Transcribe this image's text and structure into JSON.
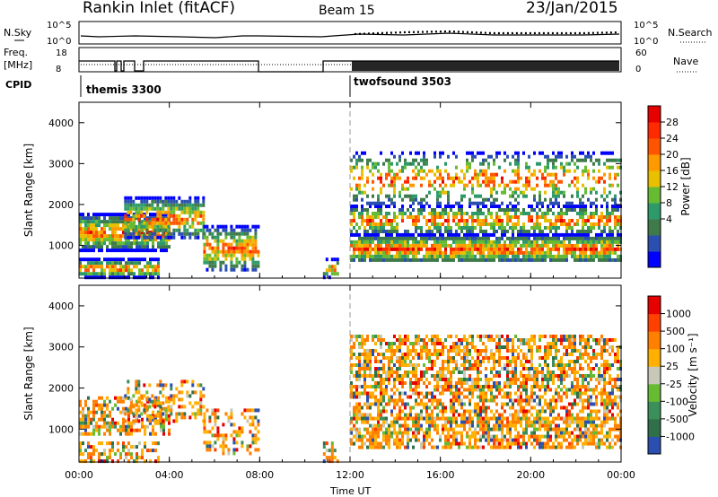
{
  "header": {
    "station": "Rankin Inlet (fitACF)",
    "beam": "Beam 15",
    "date": "23/Jan/2015"
  },
  "aux_panels": {
    "nsky_label": "N.Sky",
    "nsky_ticks": [
      "10^5",
      "10^0"
    ],
    "nsearch_label": "N.Search",
    "nsearch_ticks": [
      "10^5",
      "10^0"
    ],
    "freq_label": "Freq.",
    "freq_unit": "[MHz]",
    "freq_ticks": [
      "18",
      "8"
    ],
    "nave_label": "Nave",
    "nave_ticks": [
      "60",
      "0"
    ],
    "cpid_label": "CPID",
    "cpid_modes": [
      "themis 3300",
      "twofsound 3503"
    ]
  },
  "chart_data": [
    {
      "type": "heatmap",
      "panel": "power",
      "ylabel": "Slant Range [km]",
      "xlabel": "",
      "x_ticks": [
        "00:00",
        "04:00",
        "08:00",
        "12:00",
        "16:00",
        "20:00",
        "00:00"
      ],
      "xlim_hours": [
        0,
        24
      ],
      "ylim": [
        200,
        4500
      ],
      "y_ticks": [
        1000,
        2000,
        3000,
        4000
      ],
      "colorbar": {
        "label": "Power [dB]",
        "ticks": [
          "28",
          "24",
          "20",
          "16",
          "12",
          "8",
          "4"
        ],
        "colors": [
          "#0000ff",
          "#2a4fb0",
          "#3f7b4a",
          "#2e9a6a",
          "#66bb33",
          "#e8c000",
          "#ff9900",
          "#ff5500",
          "#ff2a00",
          "#e60000"
        ]
      },
      "data_gaps_hours": [
        [
          8.0,
          10.5
        ]
      ],
      "scatter_bands": [
        {
          "t0": 0.0,
          "t1": 4.0,
          "r0": 900,
          "r1": 1800,
          "level": 0.85
        },
        {
          "t0": 2.0,
          "t1": 5.5,
          "r0": 1200,
          "r1": 2200,
          "level": 0.75
        },
        {
          "t0": 0.0,
          "t1": 3.5,
          "r0": 250,
          "r1": 700,
          "level": 0.8
        },
        {
          "t0": 5.5,
          "t1": 8.0,
          "r0": 400,
          "r1": 1500,
          "level": 0.7
        },
        {
          "t0": 10.8,
          "t1": 11.5,
          "r0": 250,
          "r1": 700,
          "level": 0.55
        },
        {
          "t0": 12.0,
          "t1": 24.0,
          "r0": 600,
          "r1": 1300,
          "level": 0.9
        },
        {
          "t0": 12.0,
          "t1": 24.0,
          "r0": 1300,
          "r1": 2000,
          "level": 0.6
        },
        {
          "t0": 12.0,
          "t1": 24.0,
          "r0": 2000,
          "r1": 3300,
          "level": 0.35
        }
      ]
    },
    {
      "type": "heatmap",
      "panel": "velocity",
      "ylabel": "Slant Range [km]",
      "xlabel": "Time UT",
      "x_ticks": [
        "00:00",
        "04:00",
        "08:00",
        "12:00",
        "16:00",
        "20:00",
        "00:00"
      ],
      "xlim_hours": [
        0,
        24
      ],
      "ylim": [
        200,
        4500
      ],
      "y_ticks": [
        1000,
        2000,
        3000,
        4000
      ],
      "colorbar": {
        "label": "Velocity [m s⁻¹]",
        "ticks": [
          "1000",
          "500",
          "100",
          "25",
          "-25",
          "-100",
          "-500",
          "-1000"
        ],
        "colors": [
          "#2a4fb0",
          "#2f6f4a",
          "#3a8f5a",
          "#66bb33",
          "#c8c8b8",
          "#ffb000",
          "#ff8000",
          "#ff4000",
          "#e60000"
        ]
      },
      "data_gaps_hours": [
        [
          8.0,
          10.5
        ]
      ],
      "scatter_bands": [
        {
          "t0": 0.0,
          "t1": 4.0,
          "r0": 900,
          "r1": 1800,
          "level": 0.6
        },
        {
          "t0": 2.0,
          "t1": 5.5,
          "r0": 1200,
          "r1": 2200,
          "level": 0.35
        },
        {
          "t0": 0.0,
          "t1": 3.5,
          "r0": 250,
          "r1": 700,
          "level": 0.5
        },
        {
          "t0": 5.5,
          "t1": 8.0,
          "r0": 400,
          "r1": 1500,
          "level": 0.4
        },
        {
          "t0": 10.8,
          "t1": 11.5,
          "r0": 250,
          "r1": 700,
          "level": 0.5
        },
        {
          "t0": 12.0,
          "t1": 24.0,
          "r0": 600,
          "r1": 1300,
          "level": 0.7
        },
        {
          "t0": 12.0,
          "t1": 24.0,
          "r0": 1300,
          "r1": 2000,
          "level": 0.6
        },
        {
          "t0": 12.0,
          "t1": 24.0,
          "r0": 2000,
          "r1": 3300,
          "level": 0.6
        }
      ]
    }
  ]
}
